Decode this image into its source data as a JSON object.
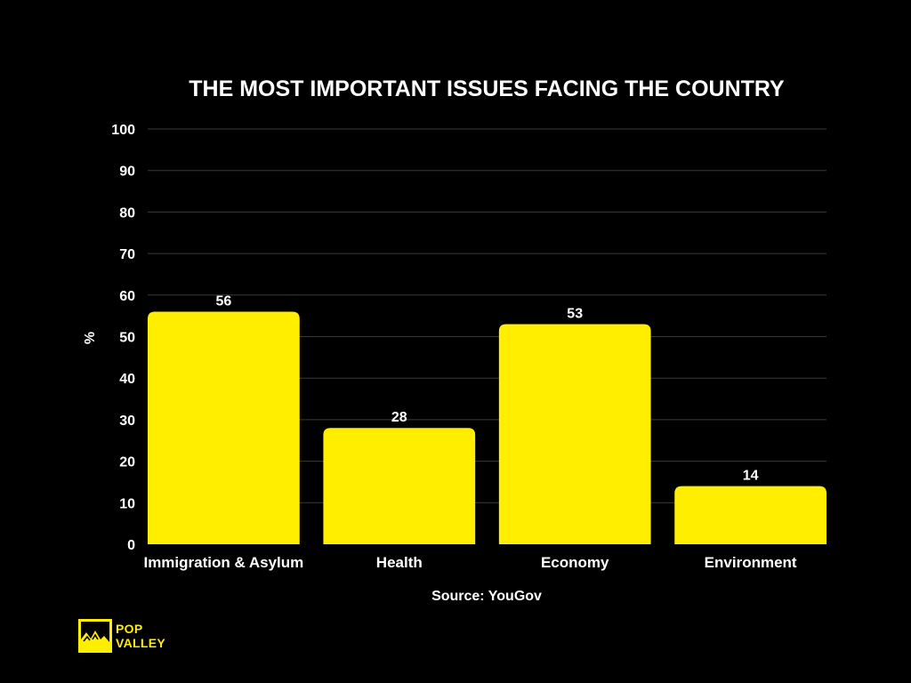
{
  "chart_data": {
    "type": "bar",
    "title": "THE MOST IMPORTANT ISSUES FACING THE COUNTRY",
    "xlabel": "",
    "ylabel": "%",
    "categories": [
      "Immigration & Asylum",
      "Health",
      "Economy",
      "Environment"
    ],
    "values": [
      56,
      28,
      53,
      14
    ],
    "ylim": [
      0,
      100
    ],
    "yticks": [
      0,
      10,
      20,
      30,
      40,
      50,
      60,
      70,
      80,
      90,
      100
    ],
    "grid": true,
    "bar_color": "#ffee00",
    "background_color": "#000000",
    "grid_color": "#3a3a3a",
    "text_color": "#ffffff"
  },
  "source": "Source: YouGov",
  "logo": {
    "line1": "POP",
    "line2": "VALLEY",
    "icon": "mountain-icon",
    "color": "#ffee00"
  }
}
